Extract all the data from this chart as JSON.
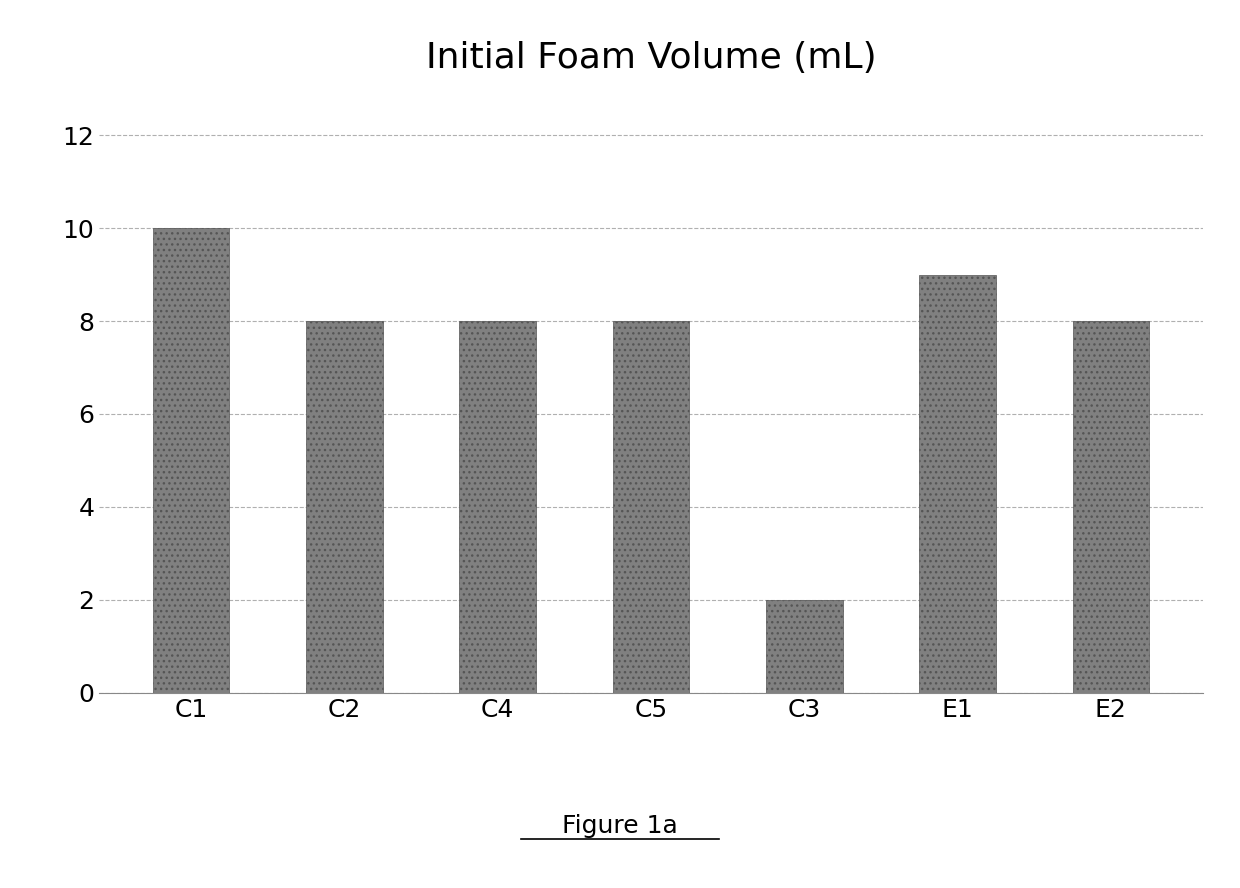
{
  "title": "Initial Foam Volume (mL)",
  "categories": [
    "C1",
    "C2",
    "C4",
    "C5",
    "C3",
    "E1",
    "E2"
  ],
  "values": [
    10,
    8,
    8,
    8,
    2,
    9,
    8
  ],
  "bar_color": "#808080",
  "ylim": [
    0,
    13
  ],
  "yticks": [
    0,
    2,
    4,
    6,
    8,
    10,
    12
  ],
  "grid_color": "#b0b0b0",
  "background_color": "#ffffff",
  "title_fontsize": 26,
  "tick_fontsize": 18,
  "figure_caption": "Figure 1a",
  "caption_fontsize": 18
}
